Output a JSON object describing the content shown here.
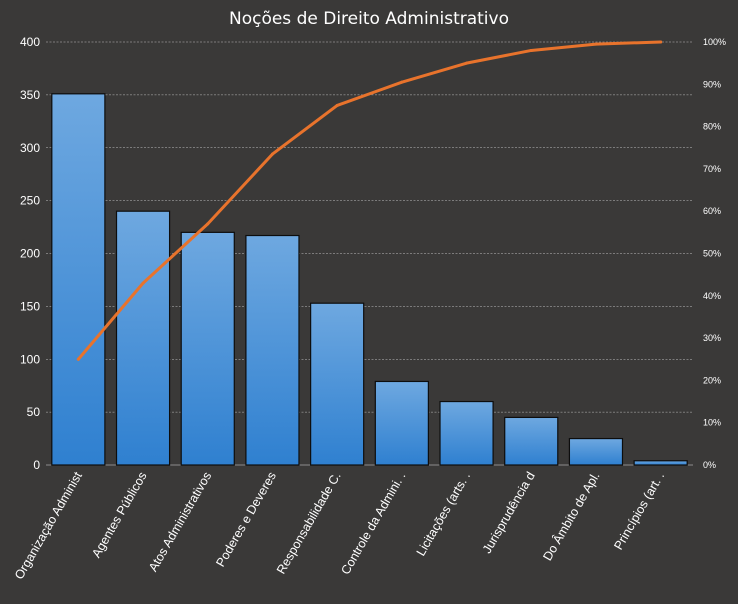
{
  "chart_data": {
    "type": "bar",
    "title": "Noções de Direito Administrativo",
    "categories": [
      "Organização Administ",
      "Agentes Públicos",
      "Atos Administrativos",
      "Poderes e Deveres",
      "Responsabilidade C.",
      "Controle da Admini. .",
      "Licitações (arts. .",
      "Jurisprudência d",
      "Do Âmbito de Apl.",
      "Princípios (art. ."
    ],
    "series": [
      {
        "type": "bar",
        "values": [
          351,
          240,
          220,
          217,
          153,
          79,
          60,
          45,
          25,
          4
        ]
      },
      {
        "type": "line",
        "axis": "right",
        "values": [
          25,
          43,
          57,
          73.5,
          85,
          90.5,
          95,
          98,
          99.5,
          100
        ]
      }
    ],
    "ylim": [
      0,
      400
    ],
    "y_ticks": [
      "0",
      "50",
      "100",
      "150",
      "200",
      "250",
      "300",
      "350",
      "400"
    ],
    "y2lim": [
      0,
      100
    ],
    "y2_ticks": [
      "0%",
      "10%",
      "20%",
      "30%",
      "40%",
      "50%",
      "60%",
      "70%",
      "80%",
      "90%",
      "100%"
    ],
    "grid": true,
    "colors": {
      "bar_top": "#6ea8e0",
      "bar_bottom": "#2f80d0",
      "line": "#e8732c",
      "grid": "#bfbfbf"
    }
  }
}
